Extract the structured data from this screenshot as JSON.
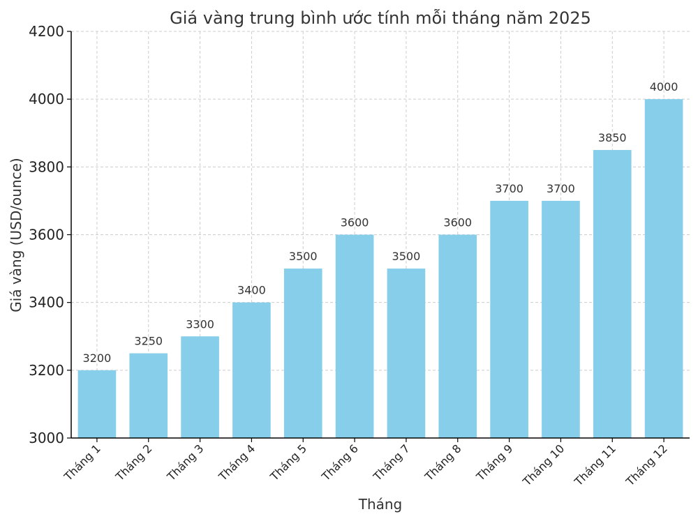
{
  "chart_data": {
    "type": "bar",
    "title": "Giá vàng trung bình ước tính mỗi tháng năm 2025",
    "xlabel": "Tháng",
    "ylabel": "Giá vàng (USD/ounce)",
    "categories": [
      "Tháng 1",
      "Tháng 2",
      "Tháng 3",
      "Tháng 4",
      "Tháng 5",
      "Tháng 6",
      "Tháng 7",
      "Tháng 8",
      "Tháng 9",
      "Tháng 10",
      "Tháng 11",
      "Tháng 12"
    ],
    "values": [
      3200,
      3250,
      3300,
      3400,
      3500,
      3600,
      3500,
      3600,
      3700,
      3700,
      3850,
      4000
    ],
    "data_labels": [
      "3200",
      "3250",
      "3300",
      "3400",
      "3500",
      "3600",
      "3500",
      "3600",
      "3700",
      "3700",
      "3850",
      "4000"
    ],
    "ylim": [
      3000,
      4200
    ],
    "yticks": [
      3000,
      3200,
      3400,
      3600,
      3800,
      4000,
      4200
    ],
    "ytick_labels": [
      "3000",
      "3200",
      "3400",
      "3600",
      "3800",
      "4000",
      "4200"
    ],
    "grid": true,
    "colors": {
      "bar": "#87ceeb",
      "grid": "#cccccc",
      "axis": "#000000",
      "text": "#333333"
    }
  }
}
